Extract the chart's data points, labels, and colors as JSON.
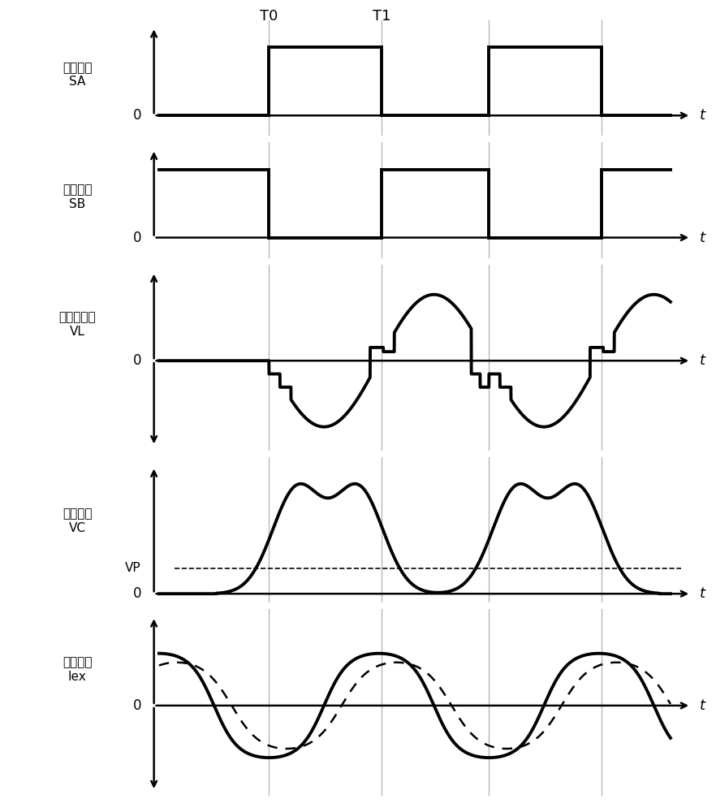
{
  "bg_color": "#ffffff",
  "line_color": "#000000",
  "grid_color": "#b0b0b0",
  "panel_labels": [
    "励磁信号\nSA",
    "励磁信号\nSB",
    "端子间电压\nVL",
    "充电电压\nVC",
    "励磁电流\nIex"
  ],
  "T0": 0.215,
  "T1": 0.435,
  "G2": 0.645,
  "G3": 0.865,
  "xend": 1.0,
  "font_chinese": "SimSun",
  "lw_signal": 2.8,
  "lw_axis": 1.8
}
